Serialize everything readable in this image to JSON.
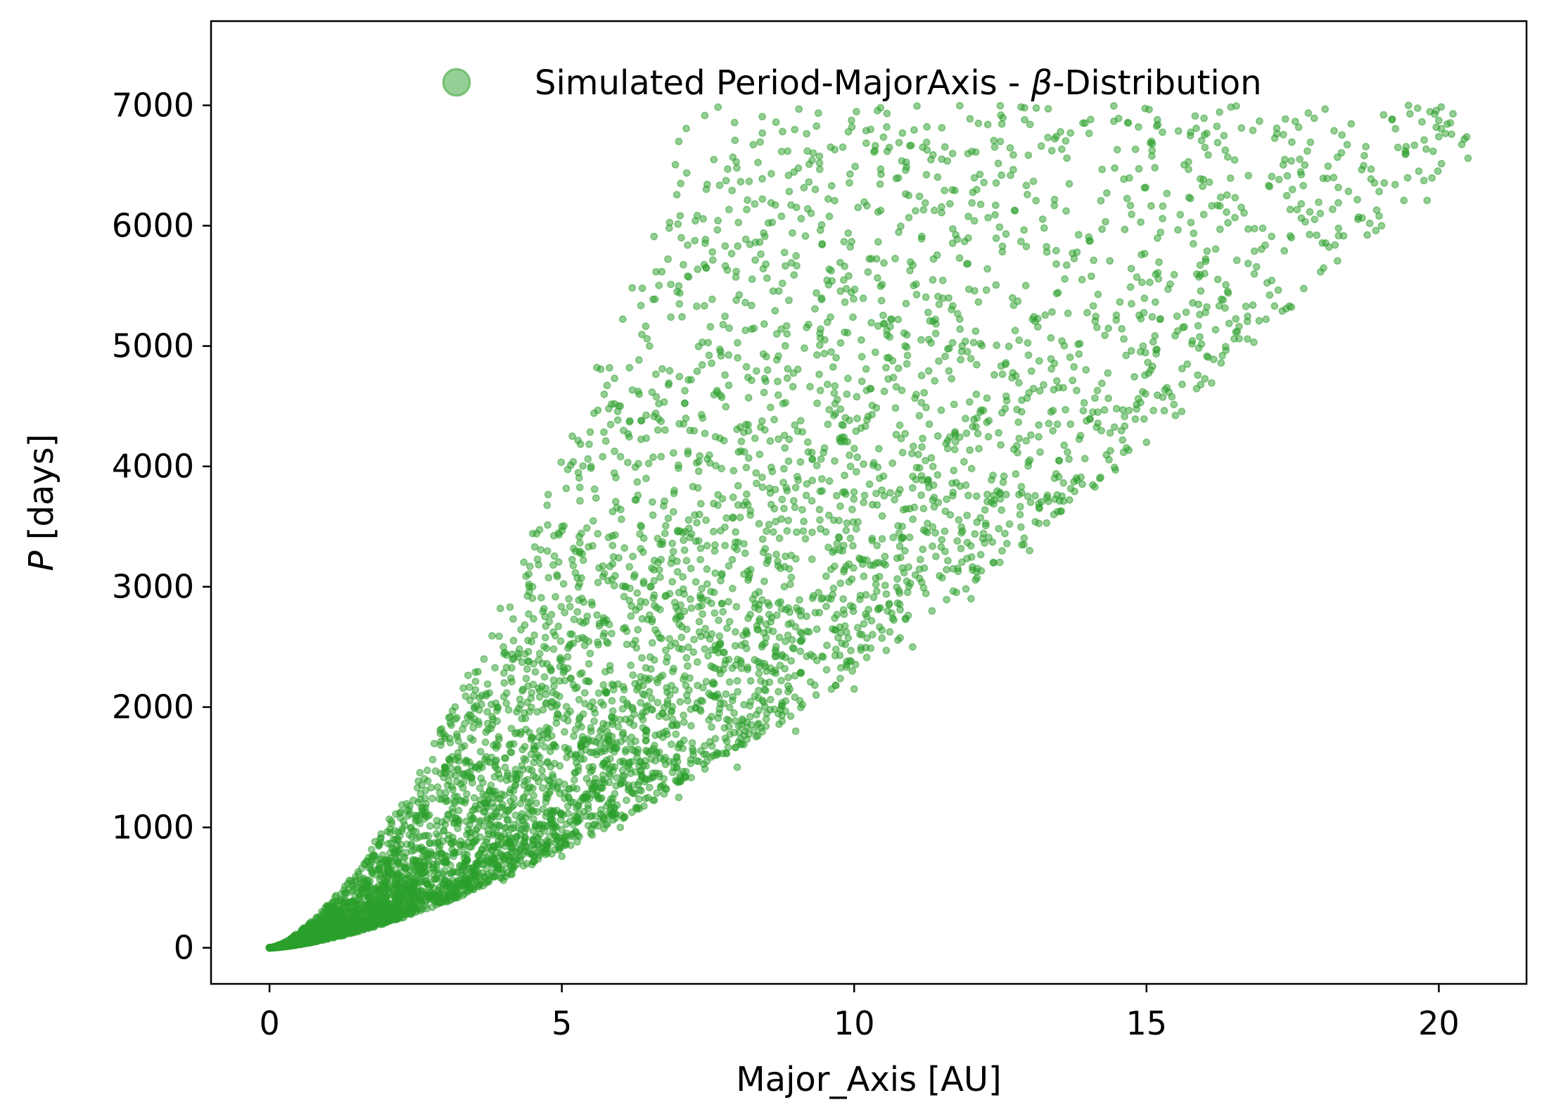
{
  "chart_data": {
    "type": "scatter",
    "title": "",
    "xlabel": "Major_Axis [AU]",
    "ylabel_italic": "P",
    "ylabel_rest": " [days]",
    "xlim": [
      -1,
      21.5
    ],
    "ylim": [
      -300,
      7700
    ],
    "x_ticks": [
      0,
      5,
      10,
      15,
      20
    ],
    "x_tick_labels": [
      "0",
      "5",
      "10",
      "15",
      "20"
    ],
    "y_ticks": [
      0,
      1000,
      2000,
      3000,
      4000,
      5000,
      6000,
      7000
    ],
    "y_tick_labels": [
      "0",
      "1000",
      "2000",
      "3000",
      "4000",
      "5000",
      "6000",
      "7000"
    ],
    "grid": false,
    "legend_position": "top-right",
    "series": [
      {
        "name_prefix": "Simulated Period-MajorAxis - ",
        "name_symbol": "β",
        "name_suffix": "-Distribution",
        "color": "#2ca02c",
        "marker_alpha": 0.5,
        "point_count_approx": 6000,
        "points": [
          [
            0.1,
            5
          ],
          [
            0.3,
            30
          ],
          [
            0.5,
            70
          ],
          [
            0.8,
            150
          ],
          [
            1.0,
            300
          ],
          [
            1.5,
            500
          ],
          [
            2.0,
            700
          ],
          [
            2.5,
            1100
          ],
          [
            3.0,
            1500
          ],
          [
            3.5,
            2000
          ],
          [
            4.0,
            2500
          ],
          [
            4.5,
            3000
          ],
          [
            5.0,
            3500
          ],
          [
            5.5,
            4000
          ],
          [
            6.0,
            4500
          ],
          [
            6.5,
            5000
          ],
          [
            7.0,
            5500
          ],
          [
            7.0,
            6700
          ],
          [
            7.6,
            6550
          ],
          [
            9.2,
            6620
          ],
          [
            9.9,
            6780
          ],
          [
            10.6,
            6650
          ],
          [
            12.5,
            6700
          ],
          [
            13.7,
            6770
          ],
          [
            15.1,
            6680
          ],
          [
            16.0,
            6650
          ],
          [
            17.4,
            6250
          ],
          [
            18.2,
            6400
          ],
          [
            19.3,
            6650
          ],
          [
            20.0,
            6740
          ],
          [
            20.5,
            6560
          ],
          [
            19.8,
            6210
          ],
          [
            15.0,
            4200
          ],
          [
            14.2,
            3900
          ],
          [
            13.0,
            3300
          ],
          [
            12.0,
            2900
          ],
          [
            11.0,
            2500
          ],
          [
            10.0,
            2150
          ],
          [
            9.0,
            1800
          ],
          [
            8.0,
            1500
          ],
          [
            7.0,
            1250
          ],
          [
            6.0,
            1000
          ],
          [
            5.0,
            760
          ],
          [
            4.0,
            560
          ],
          [
            3.0,
            400
          ],
          [
            2.0,
            250
          ],
          [
            1.0,
            110
          ],
          [
            0.5,
            40
          ]
        ]
      }
    ]
  }
}
